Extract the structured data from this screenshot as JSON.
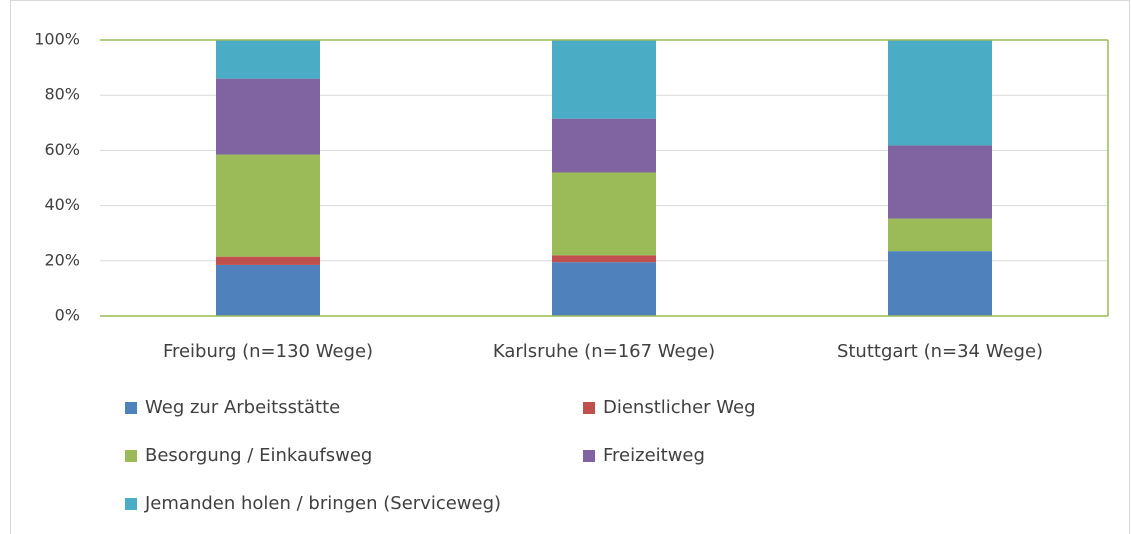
{
  "chart_data": {
    "type": "stacked_bar",
    "categories": [
      "Freiburg (n=130 Wege)",
      "Karlsruhe (n=167 Wege)",
      "Stuttgart (n=34 Wege)"
    ],
    "series": [
      {
        "name": "Weg zur Arbeitsstätte",
        "color": "#4f81bd",
        "values": [
          18.5,
          19.5,
          23.5
        ]
      },
      {
        "name": "Dienstlicher Weg",
        "color": "#c0504d",
        "values": [
          3,
          2.5,
          0
        ]
      },
      {
        "name": "Besorgung / Einkaufsweg",
        "color": "#9bbb59",
        "values": [
          37,
          30,
          11.8
        ]
      },
      {
        "name": "Freizeitweg",
        "color": "#8064a2",
        "values": [
          27.5,
          19.5,
          26.5
        ]
      },
      {
        "name": "Jemanden holen / bringen (Serviceweg)",
        "color": "#4bacc6",
        "values": [
          14,
          28.5,
          38.2
        ]
      }
    ],
    "ylim": [
      0,
      100
    ],
    "yticks": [
      {
        "value": 0,
        "label": "0%"
      },
      {
        "value": 20,
        "label": "20%"
      },
      {
        "value": 40,
        "label": "40%"
      },
      {
        "value": 60,
        "label": "60%"
      },
      {
        "value": 80,
        "label": "80%"
      },
      {
        "value": 100,
        "label": "100%"
      }
    ],
    "grid": true,
    "legend": "bottom"
  }
}
